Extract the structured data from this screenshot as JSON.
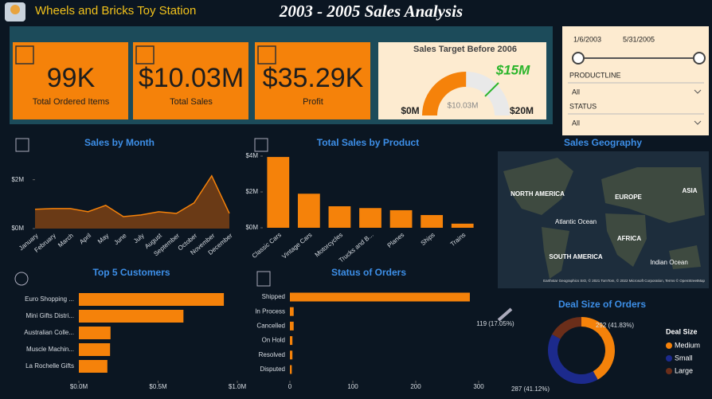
{
  "header": {
    "brand": "Wheels and Bricks Toy Station",
    "title": "2003 - 2005 Sales Analysis"
  },
  "kpis": [
    {
      "value": "99K",
      "label": "Total Ordered Items"
    },
    {
      "value": "$10.03M",
      "label": "Total Sales"
    },
    {
      "value": "$35.29K",
      "label": "Profit"
    }
  ],
  "filters": {
    "date_start": "1/6/2003",
    "date_end": "5/31/2005",
    "fields": [
      {
        "label": "PRODUCTLINE",
        "selected": "All"
      },
      {
        "label": "STATUS",
        "selected": "All"
      }
    ]
  },
  "map": {
    "title": "Sales Geography",
    "labels": [
      "NORTH AMERICA",
      "EUROPE",
      "ASIA",
      "Atlantic Ocean",
      "AFRICA",
      "SOUTH AMERICA",
      "Indian Ocean"
    ],
    "attribution": "Earthstar Geographics SIO, © 2021 TomTom, © 2022 Microsoft Corporation, Terms © OpenStreetMap"
  },
  "chart_data": [
    {
      "type": "gauge",
      "title": "Sales Target Before 2006",
      "value": 10030000,
      "value_label": "$10.03M",
      "target": 15000000,
      "target_label": "$15M",
      "ylim": [
        0,
        20000000
      ],
      "yticks": [
        {
          "value": 0,
          "label": "$0M"
        },
        {
          "value": 20000000,
          "label": "$20M"
        }
      ],
      "color": "#f5820a",
      "target_color": "#2bb52b"
    },
    {
      "type": "area",
      "title": "Sales by Month",
      "categories": [
        "January",
        "February",
        "March",
        "April",
        "May",
        "June",
        "July",
        "August",
        "September",
        "October",
        "November",
        "December"
      ],
      "values": [
        790000,
        820000,
        820000,
        690000,
        950000,
        490000,
        560000,
        690000,
        620000,
        1050000,
        2160000,
        620000
      ],
      "color": "#f5820a",
      "ylim": [
        0,
        3000000
      ],
      "yticks": [
        {
          "value": 0,
          "label": "$0M"
        },
        {
          "value": 2000000,
          "label": "$2M"
        }
      ]
    },
    {
      "type": "bar",
      "title": "Total Sales by Product",
      "categories": [
        "Classic Cars",
        "Vintage Cars",
        "Motorcycles",
        "Trucks and B...",
        "Planes",
        "Ships",
        "Trains"
      ],
      "values": [
        3950000,
        1900000,
        1200000,
        1100000,
        980000,
        710000,
        230000
      ],
      "color": "#f5820a",
      "ylim": [
        0,
        4000000
      ],
      "yticks": [
        {
          "value": 0,
          "label": "$0M"
        },
        {
          "value": 2000000,
          "label": "$2M"
        },
        {
          "value": 4000000,
          "label": "$4M"
        }
      ]
    },
    {
      "type": "hbar",
      "title": "Top 5 Customers",
      "categories": [
        "Euro Shopping ...",
        "Mini Gifts Distri...",
        "Australian Colle...",
        "Muscle Machin...",
        "La Rochelle Gifts"
      ],
      "values": [
        915000,
        660000,
        200000,
        197000,
        180000
      ],
      "color": "#f5820a",
      "xlim": [
        0,
        1000000
      ],
      "xticks": [
        {
          "value": 0,
          "label": "$0.0M"
        },
        {
          "value": 500000,
          "label": "$0.5M"
        },
        {
          "value": 1000000,
          "label": "$1.0M"
        }
      ]
    },
    {
      "type": "hbar",
      "title": "Status of Orders",
      "categories": [
        "Shipped",
        "In Process",
        "Cancelled",
        "On Hold",
        "Resolved",
        "Disputed"
      ],
      "values": [
        286,
        6,
        6,
        4,
        4,
        3
      ],
      "color": "#f5820a",
      "xlim": [
        0,
        300
      ],
      "xticks": [
        0,
        100,
        200,
        300
      ]
    },
    {
      "type": "donut",
      "title": "Deal Size of Orders",
      "legend_title": "Deal Size",
      "categories": [
        "Medium",
        "Small",
        "Large"
      ],
      "values": [
        292,
        287,
        119
      ],
      "value_labels": [
        "292 (41.83%)",
        "287 (41.12%)",
        "119 (17.05%)"
      ],
      "colors": [
        "#f5820a",
        "#1c2a8c",
        "#6b2e1a"
      ]
    }
  ]
}
